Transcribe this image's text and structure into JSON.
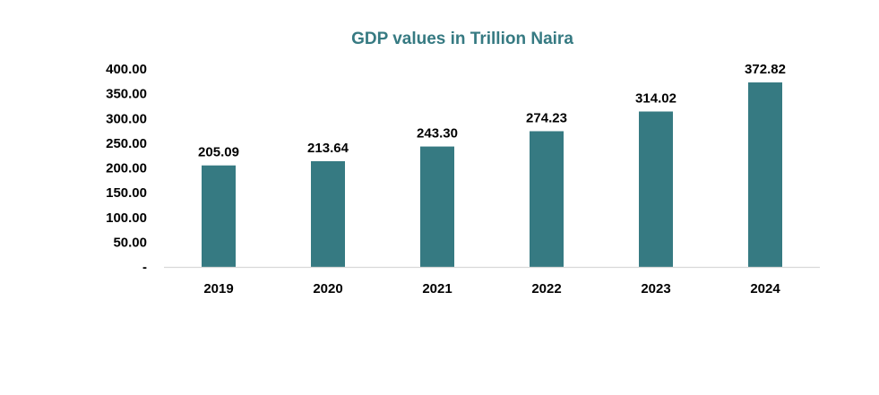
{
  "chart_data": {
    "type": "bar",
    "title": "GDP values in Trillion Naira",
    "categories": [
      "2019",
      "2020",
      "2021",
      "2022",
      "2023",
      "2024"
    ],
    "values": [
      205.09,
      213.64,
      243.3,
      274.23,
      314.02,
      372.82
    ],
    "data_labels": [
      "205.09",
      "213.64",
      "243.30",
      "274.23",
      "314.02",
      "372.82"
    ],
    "y_tick_labels": [
      "-",
      "50.00",
      "100.00",
      "150.00",
      "200.00",
      "250.00",
      "300.00",
      "350.00",
      "400.00"
    ],
    "y_ticks": [
      0,
      50,
      100,
      150,
      200,
      250,
      300,
      350,
      400
    ],
    "ylim": [
      0,
      400
    ],
    "xlabel": "",
    "ylabel": "",
    "grid": false,
    "legend": "none",
    "colors": {
      "bar": "#367a82",
      "title": "#367a82",
      "axis_line": "#d9d9d9"
    }
  }
}
